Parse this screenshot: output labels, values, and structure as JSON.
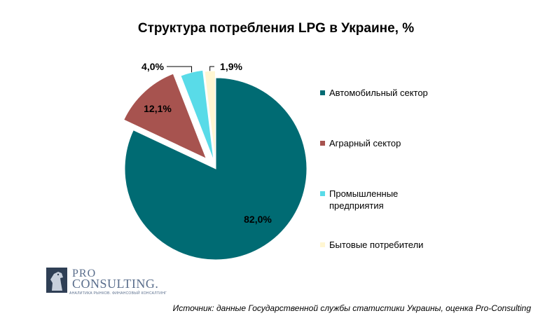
{
  "chart_data": {
    "type": "pie",
    "title": "Структура потребления LPG в Украине, %",
    "slices": [
      {
        "label": "Автомобильный сектор",
        "value": 82.0,
        "display": "82,0%",
        "color": "#006b73"
      },
      {
        "label": "Аграрный сектор",
        "value": 12.1,
        "display": "12,1%",
        "color": "#a7534f"
      },
      {
        "label": "Промышленные предприятия",
        "value": 4.0,
        "display": "4,0%",
        "color": "#59dbe8"
      },
      {
        "label": "Бытовые потребители",
        "value": 1.9,
        "display": "1,9%",
        "color": "#fff6d2"
      }
    ],
    "legend_position": "right"
  },
  "source": "Источник: данные Государственной службы статистики Украины, оценка Pro-Consulting",
  "logo": {
    "line1": "PRO",
    "line2": "CONSULTING.",
    "tagline": "АНАЛИТИКА РЫНКОВ. ФИНАНСОВЫЙ КОНСАЛТИНГ"
  }
}
